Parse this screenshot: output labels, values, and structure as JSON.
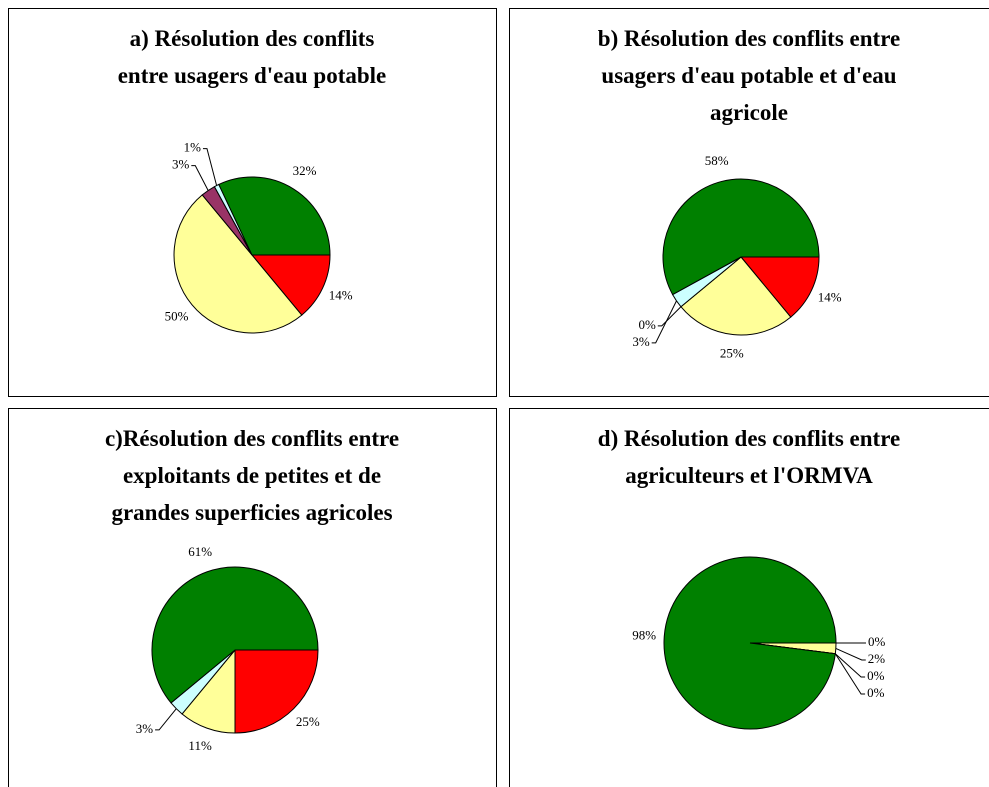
{
  "chart_data": [
    {
      "type": "pie",
      "title": [
        "a) Résolution des conflits",
        "entre usagers d'eau potable"
      ],
      "values": [
        14,
        50,
        3,
        1,
        32
      ],
      "value_labels": [
        "14%",
        "50%",
        "3%",
        "1%",
        "32%"
      ],
      "colors": [
        "#ff0000",
        "#ffff99",
        "#993366",
        "#ccffff",
        "#008000"
      ]
    },
    {
      "type": "pie",
      "title": [
        "b) Résolution des conflits entre",
        "usagers d'eau potable et d'eau",
        "agricole"
      ],
      "values": [
        14,
        25,
        0,
        3,
        58
      ],
      "value_labels": [
        "14%",
        "25%",
        "0%",
        "3%",
        "58%"
      ],
      "colors": [
        "#ff0000",
        "#ffff99",
        "#993366",
        "#ccffff",
        "#008000"
      ]
    },
    {
      "type": "pie",
      "title": [
        "c)Résolution des conflits entre",
        "exploitants de petites et de",
        "grandes superficies agricoles"
      ],
      "values": [
        25,
        11,
        3,
        61
      ],
      "value_labels": [
        "25%",
        "11%",
        "3%",
        "61%"
      ],
      "colors": [
        "#ff0000",
        "#ffff99",
        "#ccffff",
        "#008000"
      ]
    },
    {
      "type": "pie",
      "title": [
        "d) Résolution des conflits entre",
        "agriculteurs et l'ORMVA"
      ],
      "values": [
        0,
        2,
        0,
        0,
        98
      ],
      "value_labels": [
        "0%",
        "2%",
        "0%",
        "0%",
        "98%"
      ],
      "colors": [
        "#ff0000",
        "#ffff99",
        "#993366",
        "#ccffff",
        "#008000"
      ]
    }
  ]
}
